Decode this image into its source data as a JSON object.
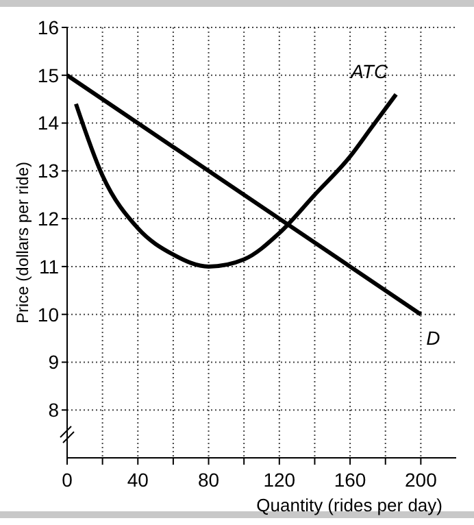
{
  "chart_data": {
    "type": "line",
    "xlabel": "Quantity (rides per day)",
    "ylabel": "Price (dollars per ride)",
    "xlim": [
      0,
      220
    ],
    "ylim": [
      7,
      16
    ],
    "xticks": [
      0,
      {
        "value": 20,
        "label": null
      },
      40,
      {
        "value": 60,
        "label": null
      },
      80,
      {
        "value": 100,
        "label": null
      },
      120,
      {
        "value": 140,
        "label": null
      },
      160,
      {
        "value": 180,
        "label": null
      },
      200
    ],
    "yticks": [
      8,
      9,
      10,
      11,
      12,
      13,
      14,
      15,
      16
    ],
    "grid": true,
    "legend": false,
    "marker": "none",
    "line_style": "solid",
    "series": [
      {
        "name": "ATC",
        "color": "#000000",
        "x": [
          5,
          20,
          40,
          60,
          80,
          100,
          120,
          140,
          160,
          172,
          186
        ],
        "values": [
          14.4,
          12.9,
          11.8,
          11.25,
          11,
          11.15,
          11.7,
          12.5,
          13.3,
          13.9,
          14.6
        ]
      },
      {
        "name": "D",
        "color": "#000000",
        "x": [
          0,
          200
        ],
        "values": [
          15,
          10
        ]
      }
    ]
  }
}
